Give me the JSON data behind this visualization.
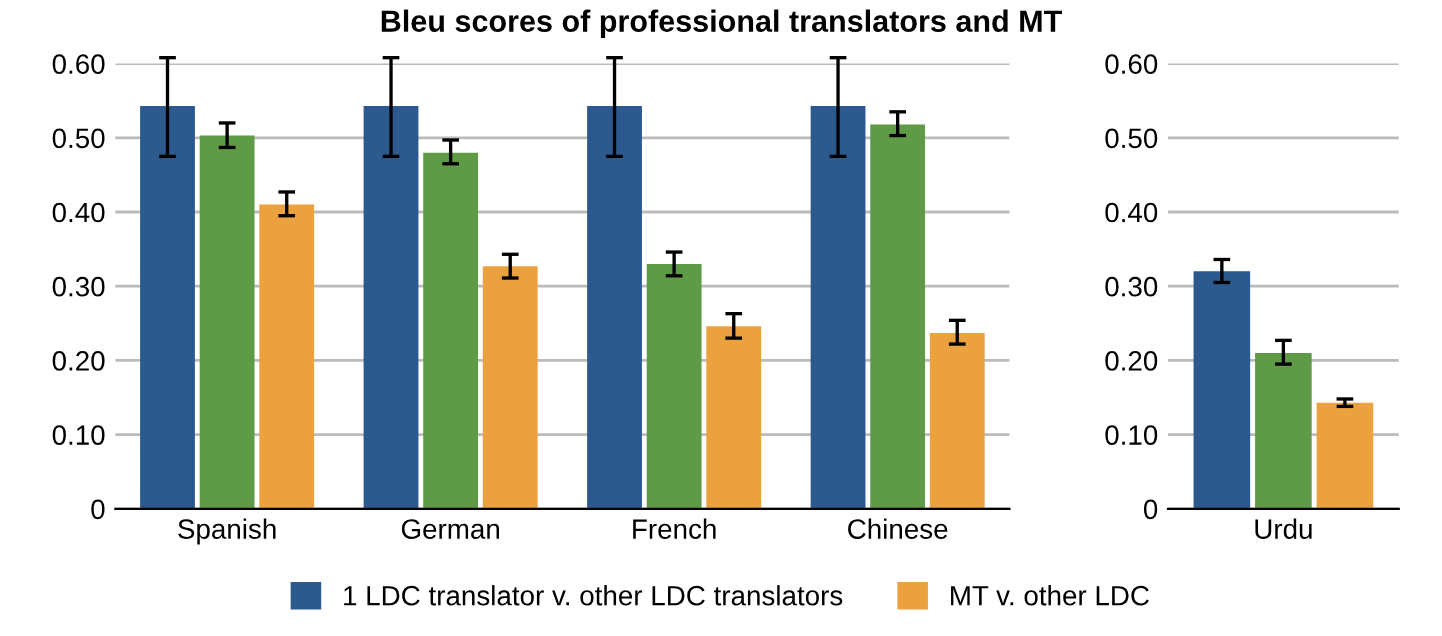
{
  "chart_data": [
    {
      "type": "bar",
      "title": "Bleu scores of professional translators and MT",
      "categories": [
        "Spanish",
        "German",
        "French",
        "Chinese"
      ],
      "ylim": [
        0,
        0.6
      ],
      "yticks": [
        {
          "value": 0,
          "label": "0"
        },
        {
          "value": 0.1,
          "label": "0.10"
        },
        {
          "value": 0.2,
          "label": "0.20"
        },
        {
          "value": 0.3,
          "label": "0.30"
        },
        {
          "value": 0.4,
          "label": "0.40"
        },
        {
          "value": 0.5,
          "label": "0.50"
        },
        {
          "value": 0.6,
          "label": "0.60"
        }
      ],
      "grid": "y",
      "legend": "bottom",
      "series": [
        {
          "name": "1 LDC translator v. other LDC translators",
          "color": "#2d5a8e",
          "values": [
            0.543,
            0.543,
            0.543,
            0.543
          ],
          "errors": [
            [
              0.475,
              0.608
            ],
            [
              0.475,
              0.608
            ],
            [
              0.475,
              0.608
            ],
            [
              0.475,
              0.608
            ]
          ]
        },
        {
          "color": "#5f9a46",
          "values": [
            0.503,
            0.48,
            0.33,
            0.518
          ],
          "errors": [
            [
              0.487,
              0.52
            ],
            [
              0.465,
              0.497
            ],
            [
              0.314,
              0.346
            ],
            [
              0.503,
              0.535
            ]
          ]
        },
        {
          "name": "MT v. other LDC",
          "color": "#eba23e",
          "values": [
            0.41,
            0.327,
            0.246,
            0.237
          ],
          "errors": [
            [
              0.395,
              0.427
            ],
            [
              0.311,
              0.343
            ],
            [
              0.23,
              0.263
            ],
            [
              0.222,
              0.254
            ]
          ]
        }
      ]
    },
    {
      "type": "bar",
      "categories": [
        "Urdu"
      ],
      "ylim": [
        0,
        0.6
      ],
      "yticks": [
        {
          "value": 0,
          "label": "0"
        },
        {
          "value": 0.1,
          "label": "0.10"
        },
        {
          "value": 0.2,
          "label": "0.20"
        },
        {
          "value": 0.3,
          "label": "0.30"
        },
        {
          "value": 0.4,
          "label": "0.40"
        },
        {
          "value": 0.5,
          "label": "0.50"
        },
        {
          "value": 0.6,
          "label": "0.60"
        }
      ],
      "grid": "y",
      "series": [
        {
          "color": "#2d5a8e",
          "values": [
            0.32
          ],
          "errors": [
            [
              0.305,
              0.336
            ]
          ]
        },
        {
          "color": "#5f9a46",
          "values": [
            0.21
          ],
          "errors": [
            [
              0.195,
              0.227
            ]
          ]
        },
        {
          "color": "#eba23e",
          "values": [
            0.143
          ],
          "errors": [
            [
              0.138,
              0.148
            ]
          ]
        }
      ]
    }
  ]
}
